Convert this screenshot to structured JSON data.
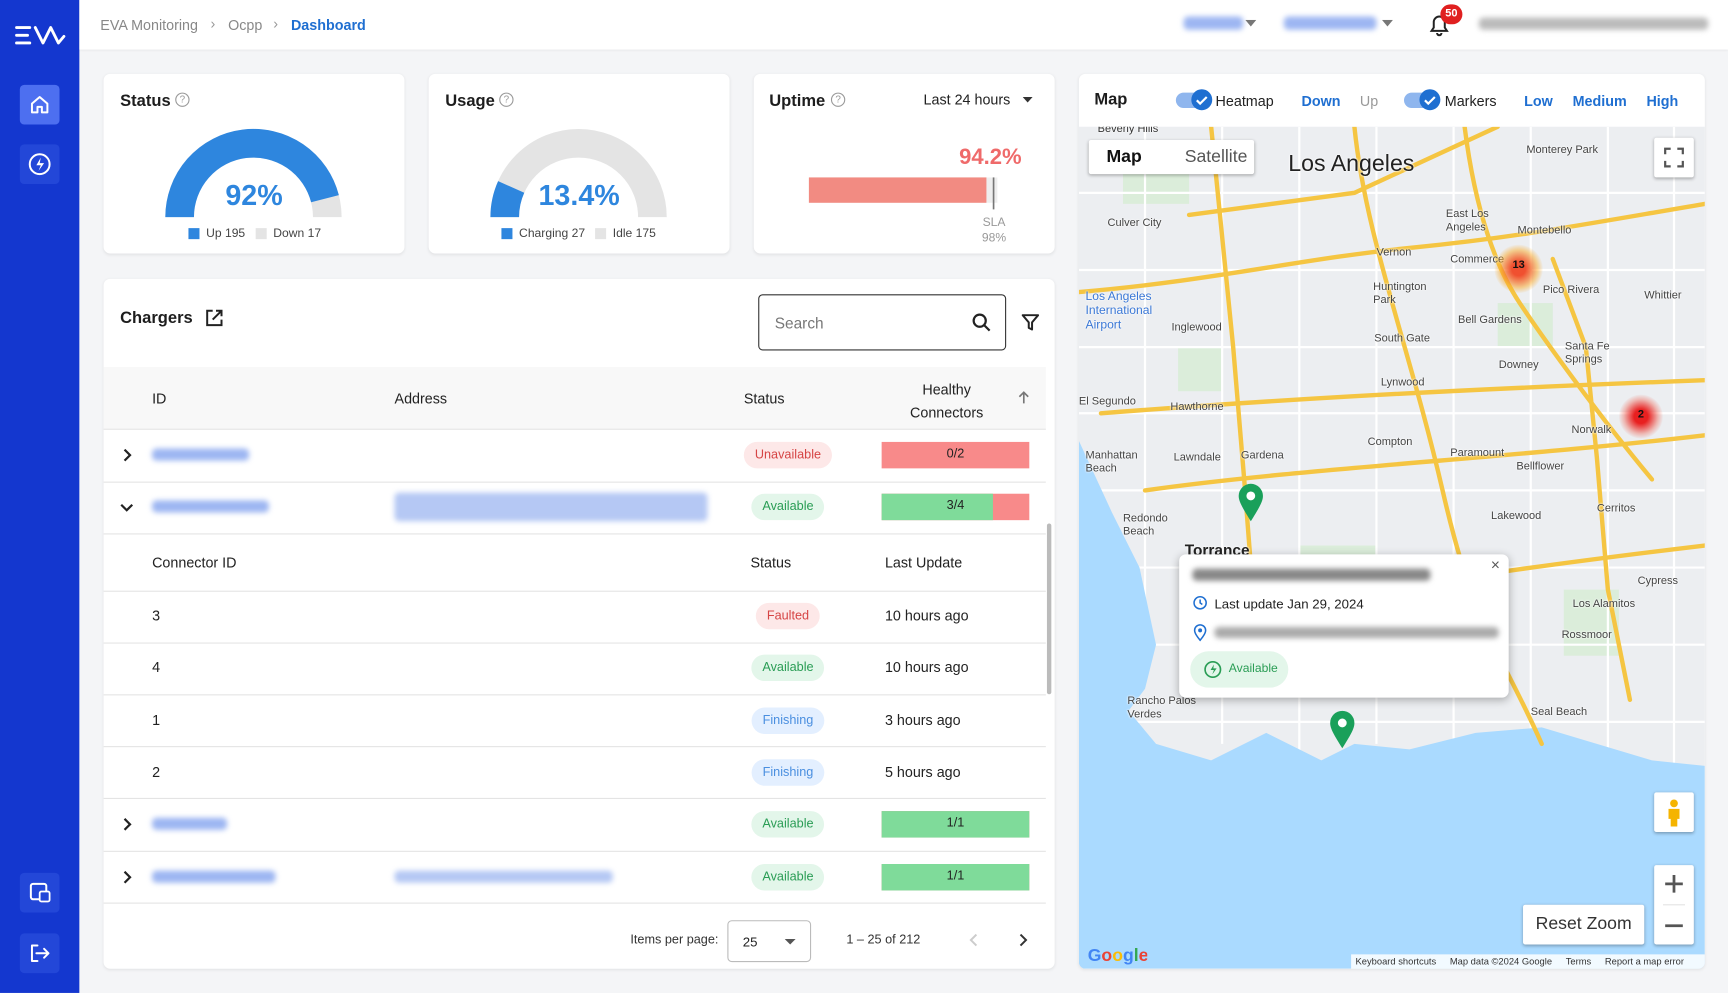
{
  "topbar": {
    "breadcrumbs": [
      "EVA Monitoring",
      "Ocpp",
      "Dashboard"
    ],
    "notifications": "50"
  },
  "status": {
    "title": "Status",
    "value": 92,
    "value_label": "92%",
    "legend": [
      "Up 195",
      "Down 17"
    ]
  },
  "usage": {
    "title": "Usage",
    "value": 13.4,
    "value_label": "13.4%",
    "legend": [
      "Charging 27",
      "Idle 175"
    ]
  },
  "uptime": {
    "title": "Uptime",
    "range": "Last 24 hours",
    "value": 94.2,
    "value_label": "94.2%",
    "sla_label": "SLA",
    "sla": 98,
    "sla_value_label": "98%"
  },
  "chargers": {
    "title": "Chargers",
    "search_placeholder": "Search",
    "columns": [
      "ID",
      "Address",
      "Status",
      "Healthy Connectors"
    ],
    "rows": [
      {
        "status": "Unavailable",
        "healthy": 0,
        "total": 2,
        "healthy_label": "0/2"
      },
      {
        "status": "Available",
        "healthy": 3,
        "total": 4,
        "healthy_label": "3/4"
      },
      {
        "status": "Available",
        "healthy": 1,
        "total": 1,
        "healthy_label": "1/1"
      },
      {
        "status": "Available",
        "healthy": 1,
        "total": 1,
        "healthy_label": "1/1"
      }
    ],
    "connectors": {
      "columns": [
        "Connector ID",
        "Status",
        "Last Update"
      ],
      "rows": [
        [
          "3",
          "Faulted",
          "10 hours ago"
        ],
        [
          "4",
          "Available",
          "10 hours ago"
        ],
        [
          "1",
          "Finishing",
          "3 hours ago"
        ],
        [
          "2",
          "Finishing",
          "5 hours ago"
        ]
      ]
    },
    "footer": {
      "items_per_page_label": "Items per page:",
      "items_per_page": "25",
      "range": "1 – 25 of 212"
    }
  },
  "map": {
    "title": "Map",
    "toggles": [
      "Heatmap",
      "Markers"
    ],
    "heatmap_options": [
      "Down",
      "Up"
    ],
    "marker_options": [
      "Low",
      "Medium",
      "High"
    ],
    "tabs": [
      "Map",
      "Satellite"
    ],
    "reset_zoom": "Reset Zoom",
    "clusters": [
      "13",
      "2"
    ],
    "popup": {
      "last_update": "Last update Jan 29, 2024",
      "status": "Available"
    },
    "attribution": [
      "Keyboard shortcuts",
      "Map data ©2024 Google",
      "Terms",
      "Report a map error"
    ],
    "places": [
      "Los Angeles",
      "Torrance",
      "Beverly Hills",
      "Culver City",
      "Vernon",
      "Huntington Park",
      "South Gate",
      "Inglewood",
      "Los Angeles International Airport",
      "Bell Gardens",
      "Pico Rivera",
      "Montebello",
      "Commerce",
      "East Los Angeles",
      "Monterey Park",
      "Whittier",
      "Santa Fe Springs",
      "Downey",
      "Lynwood",
      "El Segundo",
      "Hawthorne",
      "Norwalk",
      "Compton",
      "Paramount",
      "Bellflower",
      "Manhattan Beach",
      "Lawndale",
      "Gardena",
      "Redondo Beach",
      "Lakewood",
      "Cerritos",
      "Cypress",
      "Los Alamitos",
      "Rossmoor",
      "Seal Beach",
      "Rancho Palos Verdes"
    ]
  }
}
